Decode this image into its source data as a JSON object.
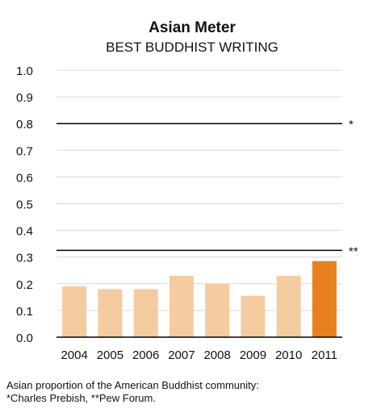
{
  "chart_data": {
    "type": "bar",
    "title": "Asian Meter",
    "subtitle": "BEST BUDDHIST WRITING",
    "categories": [
      "2004",
      "2005",
      "2006",
      "2007",
      "2008",
      "2009",
      "2010",
      "2011"
    ],
    "values": [
      0.19,
      0.18,
      0.18,
      0.23,
      0.2,
      0.155,
      0.23,
      0.285
    ],
    "ylim": [
      0,
      1.0
    ],
    "yticks": [
      "0.0",
      "0.1",
      "0.2",
      "0.3",
      "0.4",
      "0.5",
      "0.6",
      "0.7",
      "0.8",
      "0.9",
      "1.0"
    ],
    "grid": true,
    "reference_lines": [
      {
        "value": 0.8,
        "label": "*"
      },
      {
        "value": 0.325,
        "label": "**"
      }
    ],
    "bar_color": "#f5cba0",
    "highlight_color": "#e8801f",
    "highlight_category": "2011",
    "grid_color": "#d9d9d9",
    "reference_line_color": "#000000"
  },
  "caption": {
    "line1": "Asian proportion of the American Buddhist community:",
    "line2": "*Charles Prebish, **Pew Forum."
  }
}
